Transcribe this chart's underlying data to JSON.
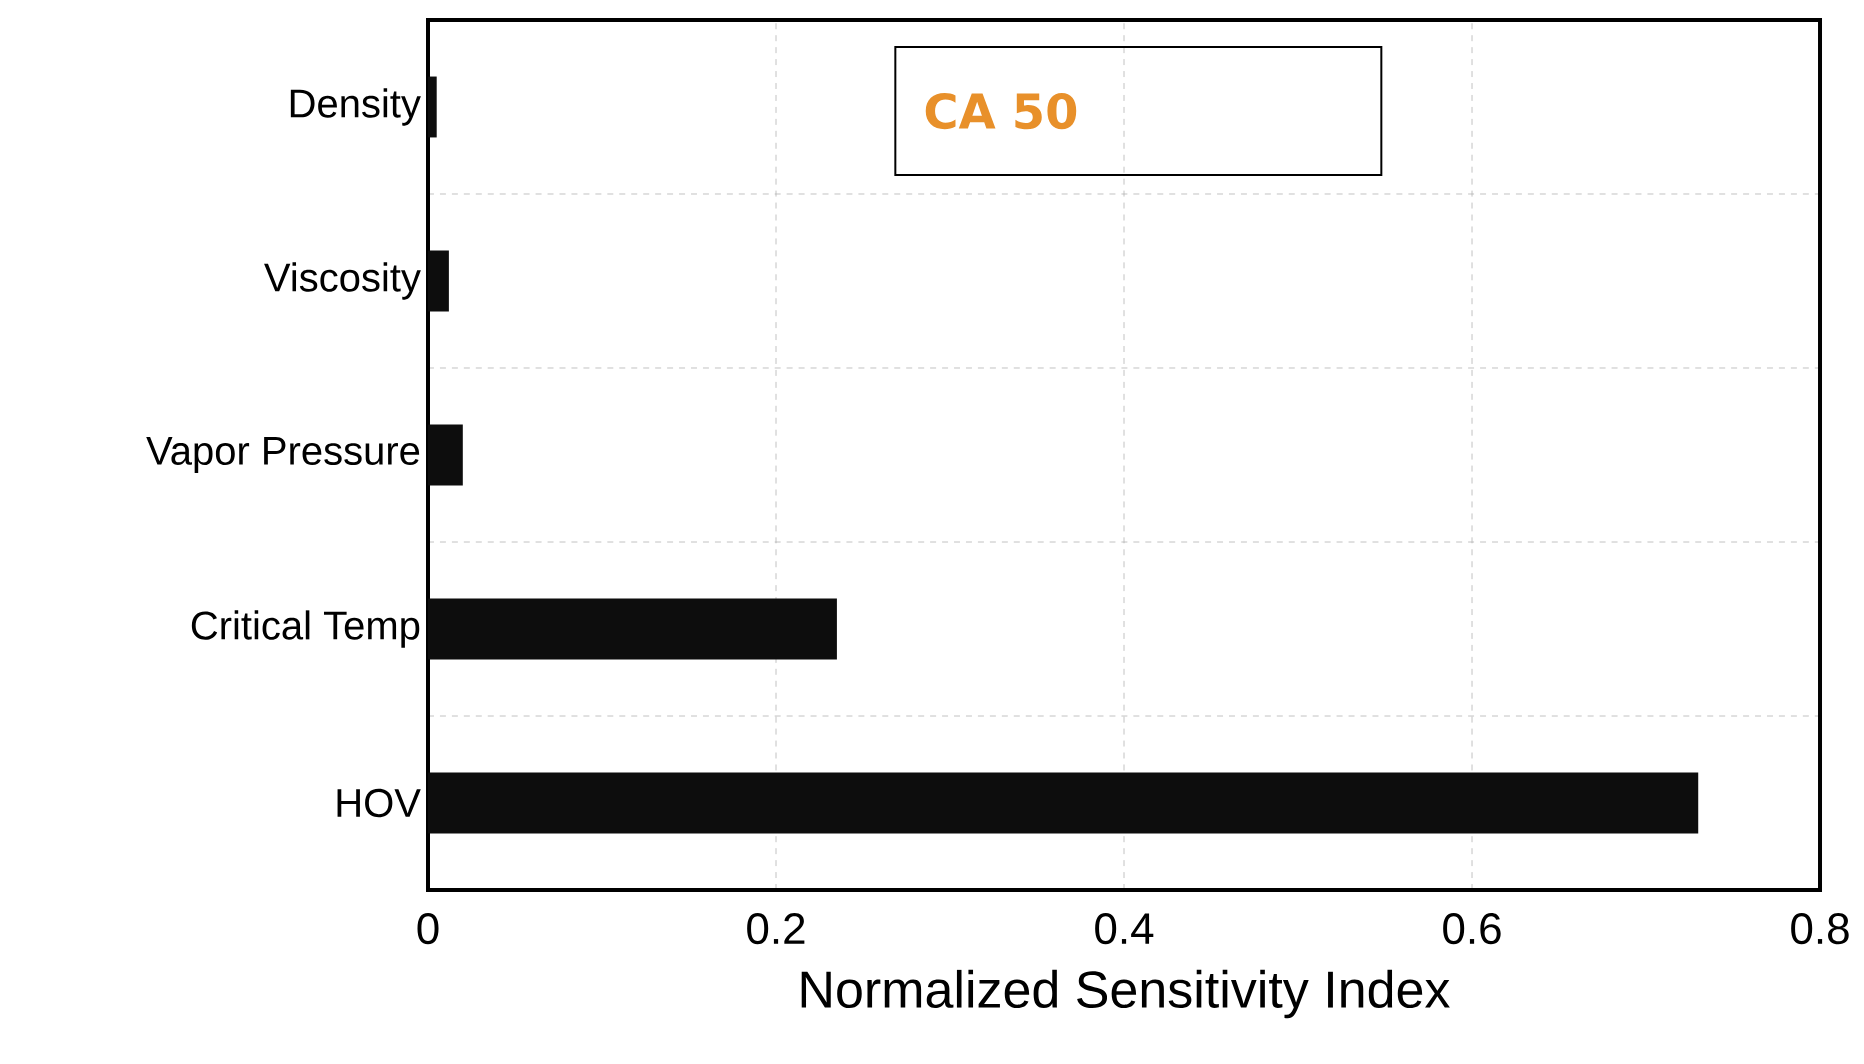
{
  "chart_data": {
    "type": "bar",
    "orientation": "horizontal",
    "title": "CA 50",
    "xlabel": "Normalized Sensitivity Index",
    "categories": [
      "Density",
      "Viscosity",
      "Vapor Pressure",
      "Critical Temp",
      "HOV"
    ],
    "values": [
      0.005,
      0.012,
      0.02,
      0.235,
      0.73
    ],
    "color": "#0d0d0d",
    "xlim": [
      0,
      0.8
    ],
    "xticks": [
      0,
      0.2,
      0.4,
      0.6,
      0.8
    ],
    "grid": true
  }
}
